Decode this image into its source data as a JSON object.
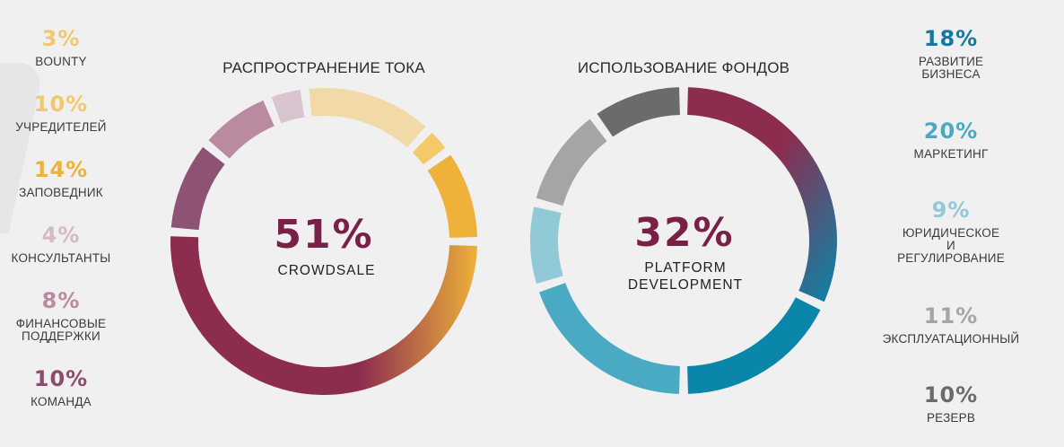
{
  "chart_data": [
    {
      "type": "donut",
      "title": "РАСПРОСТРАНЕНИЕ ТОКА",
      "center_value": "51%",
      "center_label": "CROWDSALE",
      "slices": [
        {
          "label": "CROWDSALE",
          "value": 51,
          "color": "#8c2d4f"
        },
        {
          "label": "КОМАНДА",
          "value": 10,
          "color": "#8e5275"
        },
        {
          "label": "ФИНАНСОВЫЕ ПОДДЕРЖКИ",
          "value": 8,
          "color": "#b98aa0"
        },
        {
          "label": "КОНСУЛЬТАНТЫ",
          "value": 4,
          "color": "#d9c5cf"
        },
        {
          "label": "ЗАПОВЕДНИК",
          "value": 14,
          "color": "#f1d9a8"
        },
        {
          "label": "BOUNTY",
          "value": 3,
          "color": "#f3c96a"
        },
        {
          "label": "УЧРЕДИТЕЛЕЙ",
          "value": 10,
          "color": "#eeb13a"
        }
      ]
    },
    {
      "type": "donut",
      "title": "ИСПОЛЬЗОВАНИЕ ФОНДОВ",
      "center_value": "32%",
      "center_label": "PLATFORM\nDEVELOPMENT",
      "slices": [
        {
          "label": "PLATFORM DEVELOPMENT",
          "value": 32,
          "color": "#8c2d4f"
        },
        {
          "label": "РАЗВИТИЕ БИЗНЕСА",
          "value": 18,
          "color": "#0a86ab"
        },
        {
          "label": "МАРКЕТИНГ",
          "value": 20,
          "color": "#4aa9c3"
        },
        {
          "label": "ЮРИДИЧЕСКОЕ И РЕГУЛИРОВАНИЕ",
          "value": 9,
          "color": "#92c9d6"
        },
        {
          "label": "ЭКСПЛУАТАЦИОННЫЙ",
          "value": 11,
          "color": "#a5a5a5"
        },
        {
          "label": "РЕЗЕРВ",
          "value": 10,
          "color": "#6b6b6b"
        }
      ]
    }
  ],
  "left_legend": [
    {
      "pct": "3%",
      "label": "BOUNTY",
      "color": "#f0c86e"
    },
    {
      "pct": "10%",
      "label": "УЧРЕДИТЕЛЕЙ",
      "color": "#f0c86e"
    },
    {
      "pct": "14%",
      "label": "ЗАПОВЕДНИК",
      "color": "#eeb13a"
    },
    {
      "pct": "4%",
      "label": "КОНСУЛЬТАНТЫ",
      "color": "#d5b9c6"
    },
    {
      "pct": "8%",
      "label": "ФИНАНСОВЫЕ\nПОДДЕРЖКИ",
      "color": "#b98aa0"
    },
    {
      "pct": "10%",
      "label": "КОМАНДА",
      "color": "#8e4a6f"
    }
  ],
  "right_legend": [
    {
      "pct": "18%",
      "label": "РАЗВИТИЕ\nБИЗНЕСА",
      "color": "#1479a0"
    },
    {
      "pct": "20%",
      "label": "МАРКЕТИНГ",
      "color": "#4aa9c3"
    },
    {
      "pct": "9%",
      "label": "ЮРИДИЧЕСКОЕ\nИ\nРЕГУЛИРОВАНИЕ",
      "color": "#92c9d6"
    },
    {
      "pct": "11%",
      "label": "ЭКСПЛУАТАЦИОННЫЙ",
      "color": "#a5a5a5"
    },
    {
      "pct": "10%",
      "label": "РЕЗЕРВ",
      "color": "#6b6b6b"
    }
  ]
}
